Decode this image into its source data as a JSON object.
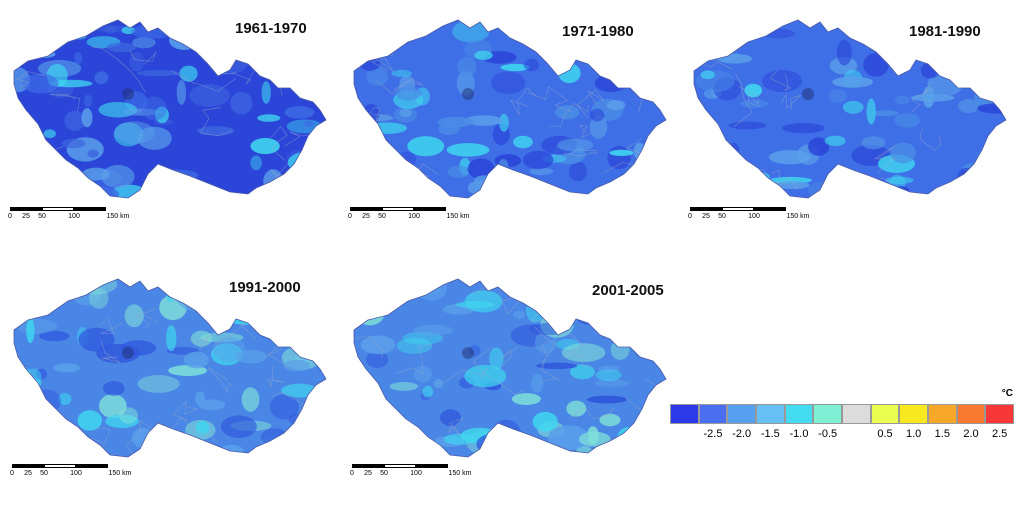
{
  "maps": [
    {
      "title": "1961-1970",
      "base": "#2a45d8",
      "patches": [
        "#3f6fe6",
        "#3d66e0",
        "#5aa0ea",
        "#3fd6ef"
      ]
    },
    {
      "title": "1971-1980",
      "base": "#3f6fe6",
      "patches": [
        "#5aa0ea",
        "#4a8de6",
        "#3fd6ef",
        "#2a45d8"
      ]
    },
    {
      "title": "1981-1990",
      "base": "#3f6fe6",
      "patches": [
        "#5aa0ea",
        "#4a8de6",
        "#3fd6ef",
        "#2a45d8"
      ]
    },
    {
      "title": "1991-2000",
      "base": "#4a86e6",
      "patches": [
        "#5aa0ea",
        "#3fd6ef",
        "#2f55dc",
        "#7fe0d8"
      ]
    },
    {
      "title": "2001-2005",
      "base": "#4a86e6",
      "patches": [
        "#5aa0ea",
        "#3fd6ef",
        "#2f55dc",
        "#7fe0d8"
      ]
    }
  ],
  "scalebar": {
    "ticks": [
      "0",
      "25",
      "50",
      "100",
      "150 km"
    ]
  },
  "legend": {
    "unit": "°C",
    "colors": [
      "#2b39e8",
      "#4a6ef0",
      "#56a0f0",
      "#66c0f4",
      "#44dcf0",
      "#7ff0d4",
      "#dcdcdc",
      "#e8ff50",
      "#f8e820",
      "#f8a828",
      "#f87830",
      "#f83838"
    ],
    "labels": [
      "-2.5",
      "-2.0",
      "-1.5",
      "-1.0",
      "-0.5",
      "0.5",
      "1.0",
      "1.5",
      "2.0",
      "2.5"
    ]
  }
}
